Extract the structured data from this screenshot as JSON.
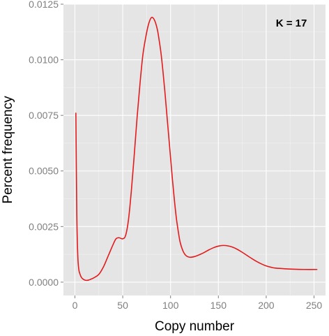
{
  "chart_data": {
    "type": "line",
    "title": "",
    "xlabel": "Copy number",
    "ylabel": "Percent frequency",
    "xlim": [
      -12,
      262
    ],
    "ylim": [
      -0.0006,
      0.0125
    ],
    "x_ticks": [
      0,
      50,
      100,
      150,
      200,
      250
    ],
    "x_tick_labels": [
      "0",
      "50",
      "100",
      "150",
      "200",
      "250"
    ],
    "y_ticks": [
      0,
      0.0025,
      0.005,
      0.0075,
      0.01,
      0.0125
    ],
    "y_tick_labels": [
      "0.0000",
      "0.0025",
      "0.0050",
      "0.0075",
      "0.0100",
      "0.0125"
    ],
    "grid": true,
    "annotation": "K = 17",
    "series": [
      {
        "color": "#e41a1c",
        "x": [
          1,
          2,
          3,
          4,
          5,
          7,
          10,
          13,
          16,
          20,
          25,
          30,
          35,
          40,
          43,
          46,
          50,
          53,
          56,
          59,
          62,
          65,
          68,
          71,
          74,
          77,
          80,
          83,
          86,
          88,
          90,
          92,
          94,
          96,
          98,
          100,
          102,
          104,
          106,
          108,
          110,
          113,
          116,
          120,
          125,
          130,
          135,
          140,
          145,
          150,
          155,
          160,
          165,
          170,
          175,
          180,
          185,
          190,
          195,
          200,
          205,
          210,
          220,
          230,
          240,
          253
        ],
        "y": [
          0.0076,
          0.003,
          0.0012,
          0.0006,
          0.0004,
          0.0002,
          0.0001,
          8e-05,
          0.00012,
          0.0002,
          0.00035,
          0.0007,
          0.0012,
          0.0017,
          0.00195,
          0.002,
          0.00195,
          0.0021,
          0.0028,
          0.0041,
          0.0057,
          0.0074,
          0.0089,
          0.0102,
          0.011,
          0.0116,
          0.0119,
          0.0118,
          0.0114,
          0.0109,
          0.0103,
          0.0095,
          0.0086,
          0.0076,
          0.0066,
          0.0056,
          0.0046,
          0.0037,
          0.0029,
          0.0023,
          0.0018,
          0.0014,
          0.0012,
          0.00112,
          0.00115,
          0.00123,
          0.00133,
          0.00145,
          0.00155,
          0.00162,
          0.00165,
          0.00163,
          0.00157,
          0.00147,
          0.00134,
          0.0012,
          0.00106,
          0.00093,
          0.00082,
          0.00073,
          0.00067,
          0.00063,
          0.0006,
          0.00058,
          0.00057,
          0.00057
        ]
      }
    ]
  }
}
